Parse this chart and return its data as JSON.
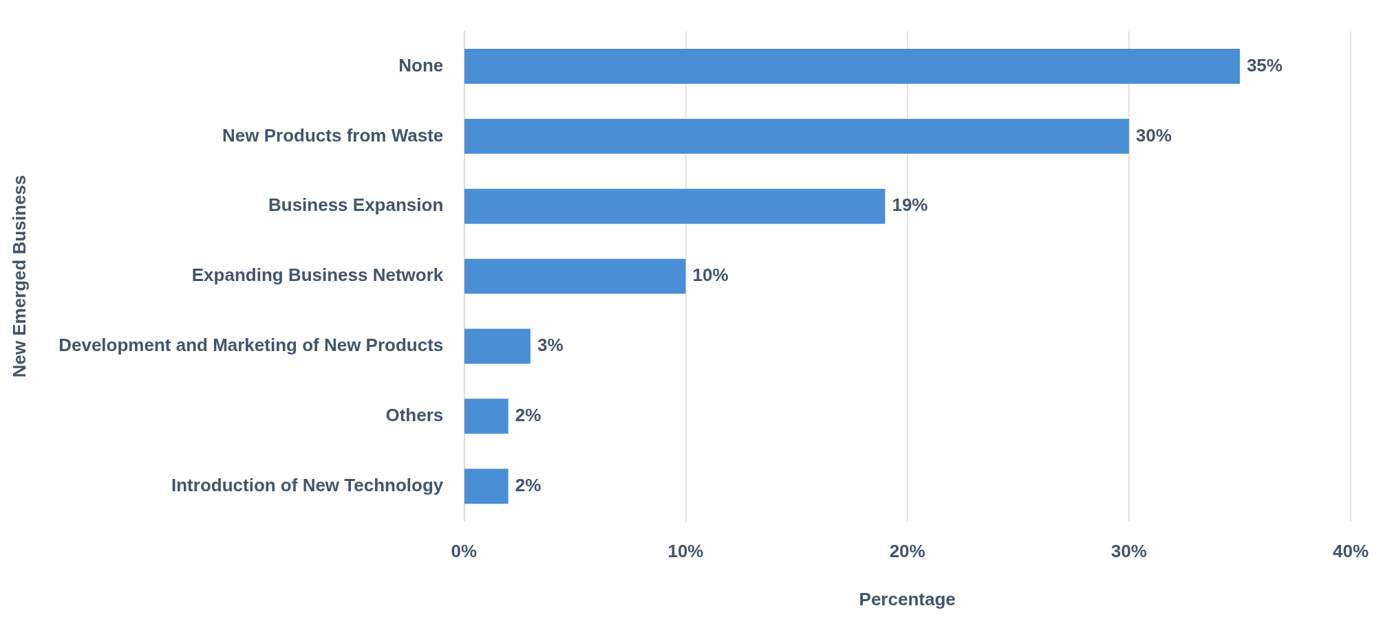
{
  "chart_data": {
    "type": "bar",
    "orientation": "horizontal",
    "categories": [
      "None",
      "New Products from Waste",
      "Business Expansion",
      "Expanding Business Network",
      "Development and Marketing of New Products",
      "Others",
      "Introduction of New Technology"
    ],
    "values": [
      35,
      30,
      19,
      10,
      3,
      2,
      2
    ],
    "value_labels": [
      "35%",
      "30%",
      "19%",
      "10%",
      "3%",
      "2%",
      "2%"
    ],
    "color": "#4a8fd6",
    "xlim": [
      0,
      40
    ],
    "xticks": [
      {
        "value": 0,
        "label": "0%"
      },
      {
        "value": 10,
        "label": "10%"
      },
      {
        "value": 20,
        "label": "20%"
      },
      {
        "value": 30,
        "label": "30%"
      },
      {
        "value": 40,
        "label": "40%"
      }
    ],
    "xlabel": "Percentage",
    "ylabel": "New Emerged Business",
    "grid": "x",
    "legend": false
  }
}
